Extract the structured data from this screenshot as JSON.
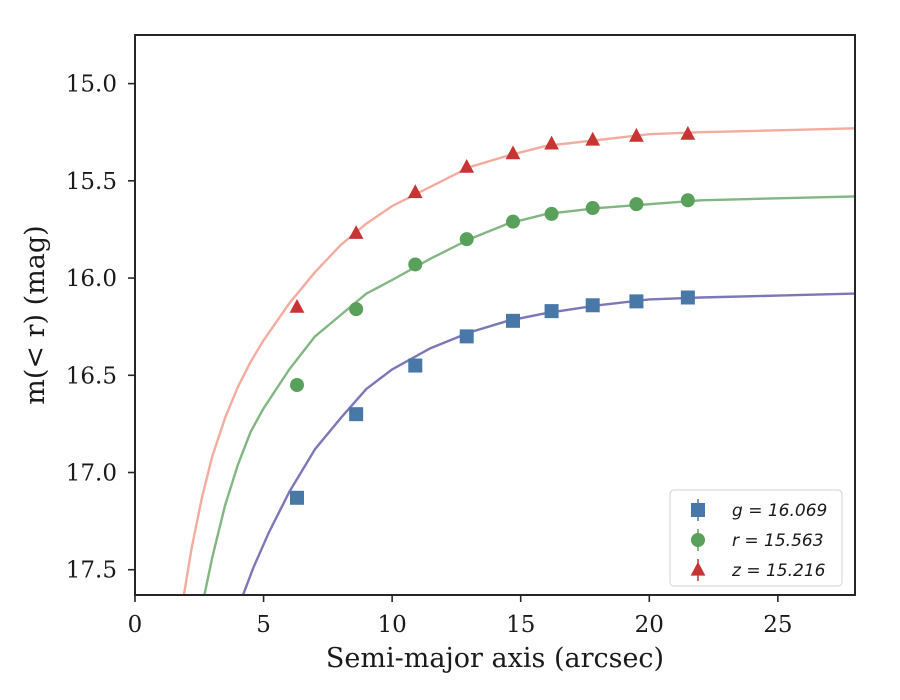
{
  "chart_data": {
    "type": "scatter",
    "xlabel": "Semi-major axis (arcsec)",
    "ylabel": "m(< r) (mag)",
    "xlim": [
      0,
      28
    ],
    "ylim": [
      17.63,
      14.75
    ],
    "y_inverted": true,
    "grid": false,
    "legend_position": "lower-right",
    "xticks": [
      0,
      5,
      10,
      15,
      20,
      25
    ],
    "xtick_labels": [
      "0",
      "5",
      "10",
      "15",
      "20",
      "25"
    ],
    "yticks": [
      15.0,
      15.5,
      16.0,
      16.5,
      17.0,
      17.5
    ],
    "ytick_labels": [
      "15.0",
      "15.5",
      "16.0",
      "16.5",
      "17.0",
      "17.5"
    ],
    "series": [
      {
        "name": "g = 16.069",
        "marker": "square",
        "color": "#4878a8",
        "curve_color": "#7b78b8",
        "x": [
          6.3,
          8.6,
          10.9,
          12.9,
          14.7,
          16.2,
          17.8,
          19.5,
          21.5
        ],
        "y": [
          17.13,
          16.7,
          16.45,
          16.3,
          16.22,
          16.17,
          16.14,
          16.12,
          16.1
        ],
        "curve": {
          "x": [
            4.2,
            4.6,
            5.2,
            6.0,
            7.0,
            8.0,
            9.0,
            10.0,
            11.5,
            13.0,
            14.5,
            16.0,
            18.0,
            20.0,
            22.0,
            25.0,
            28.0
          ],
          "y": [
            17.63,
            17.49,
            17.31,
            17.1,
            16.88,
            16.72,
            16.57,
            16.47,
            16.36,
            16.28,
            16.22,
            16.18,
            16.14,
            16.11,
            16.1,
            16.09,
            16.08
          ]
        }
      },
      {
        "name": "r = 15.563",
        "marker": "circle",
        "color": "#59a05a",
        "curve_color": "#82b682",
        "x": [
          6.3,
          8.6,
          10.9,
          12.9,
          14.7,
          16.2,
          17.8,
          19.5,
          21.5
        ],
        "y": [
          16.55,
          16.16,
          15.93,
          15.8,
          15.71,
          15.67,
          15.64,
          15.62,
          15.6
        ],
        "curve": {
          "x": [
            2.7,
            3.0,
            3.5,
            4.0,
            4.5,
            5.0,
            6.0,
            7.0,
            8.0,
            9.0,
            10.0,
            11.5,
            13.0,
            14.5,
            16.0,
            18.0,
            20.0,
            22.0,
            25.0,
            28.0
          ],
          "y": [
            17.63,
            17.44,
            17.17,
            16.96,
            16.79,
            16.67,
            16.47,
            16.3,
            16.19,
            16.08,
            16.01,
            15.9,
            15.8,
            15.72,
            15.67,
            15.64,
            15.62,
            15.6,
            15.59,
            15.58
          ]
        }
      },
      {
        "name": "z = 15.216",
        "marker": "triangle",
        "color": "#c83434",
        "curve_color": "#f4aca0",
        "x": [
          6.3,
          8.6,
          10.9,
          12.9,
          14.7,
          16.2,
          17.8,
          19.5,
          21.5
        ],
        "y": [
          16.15,
          15.77,
          15.56,
          15.43,
          15.36,
          15.31,
          15.29,
          15.27,
          15.26
        ],
        "curve": {
          "x": [
            1.9,
            2.2,
            2.6,
            3.0,
            3.5,
            4.0,
            4.5,
            5.0,
            6.0,
            7.0,
            8.0,
            9.0,
            10.0,
            11.5,
            13.0,
            14.5,
            16.0,
            18.0,
            20.0,
            22.0,
            25.0,
            28.0
          ],
          "y": [
            17.63,
            17.39,
            17.13,
            16.92,
            16.72,
            16.56,
            16.43,
            16.32,
            16.13,
            15.97,
            15.83,
            15.72,
            15.63,
            15.53,
            15.43,
            15.37,
            15.32,
            15.29,
            15.26,
            15.25,
            15.24,
            15.23
          ]
        }
      }
    ]
  }
}
